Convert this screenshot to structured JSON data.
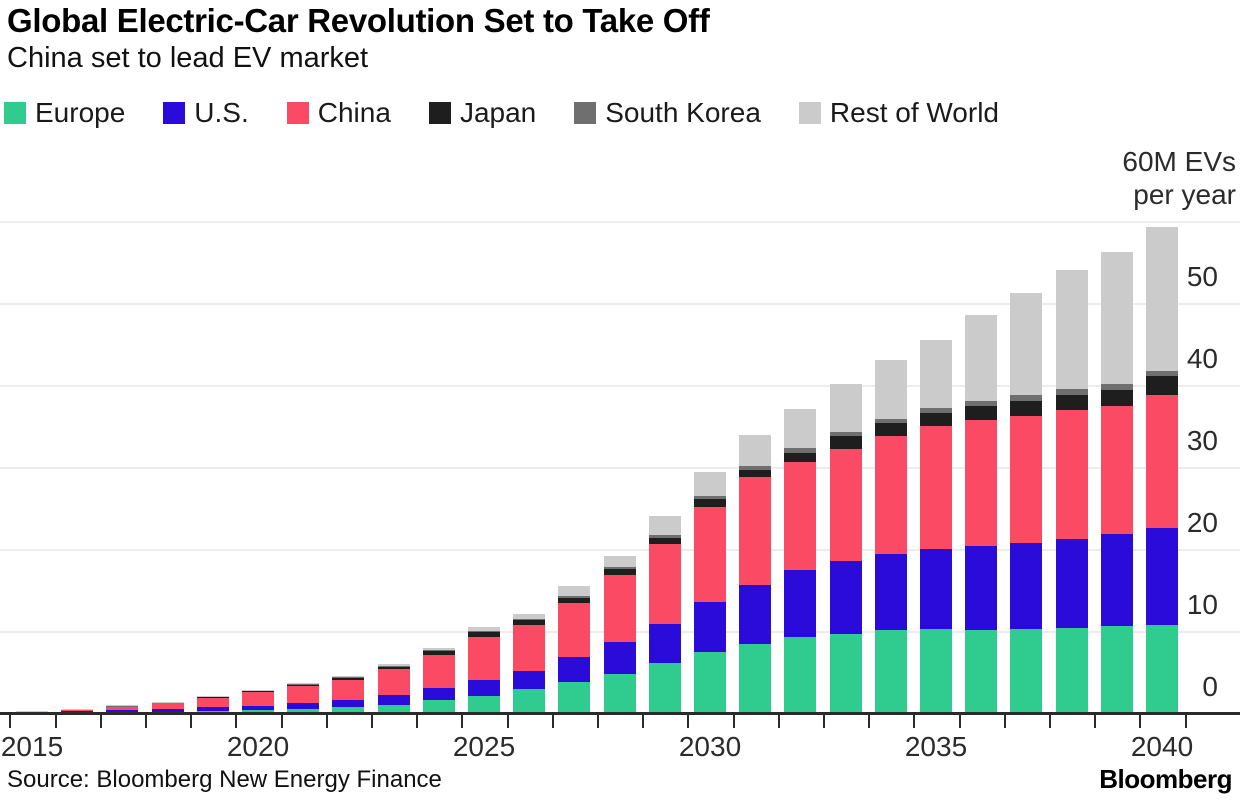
{
  "header": {
    "title": "Global Electric-Car Revolution Set to Take Off",
    "subtitle": "China set to lead EV market"
  },
  "legend": [
    {
      "label": "Europe",
      "color": "#2FCB8F"
    },
    {
      "label": "U.S.",
      "color": "#2B0BD9"
    },
    {
      "label": "China",
      "color": "#FB4A64"
    },
    {
      "label": "Japan",
      "color": "#1E1E1E"
    },
    {
      "label": "South Korea",
      "color": "#6F6F6F"
    },
    {
      "label": "Rest of World",
      "color": "#CBCBCB"
    }
  ],
  "axis_note": {
    "line1": "60M EVs",
    "line2": "per year"
  },
  "source": {
    "label": "Source: Bloomberg New Energy Finance"
  },
  "branding": {
    "logo": "Bloomberg"
  },
  "colors": {
    "grid": "#ececec",
    "axis": "#2b2b2b",
    "title_text": "#000000",
    "label_text": "#2b2b2b"
  },
  "chart_data": {
    "type": "bar",
    "stacked": true,
    "title": "Global Electric-Car Revolution Set to Take Off",
    "subtitle": "China set to lead EV market",
    "xlabel": "",
    "ylabel": "M EVs per year",
    "ylim": [
      0,
      60
    ],
    "y_ticks": [
      0,
      10,
      20,
      30,
      40,
      50
    ],
    "y_grid_values": [
      10,
      20,
      30,
      40,
      50,
      60
    ],
    "grid": "horizontal",
    "legend_position": "top",
    "axis_labels_side": "right",
    "categories": [
      2015,
      2016,
      2017,
      2018,
      2019,
      2020,
      2021,
      2022,
      2023,
      2024,
      2025,
      2026,
      2027,
      2028,
      2029,
      2030,
      2031,
      2032,
      2033,
      2034,
      2035,
      2036,
      2037,
      2038,
      2039,
      2040
    ],
    "x_tick_labels": [
      "2015",
      "2020",
      "2025",
      "2030",
      "2035",
      "2040"
    ],
    "series": [
      {
        "name": "Europe",
        "color": "#2FCB8F",
        "values": [
          0.1,
          0.15,
          0.25,
          0.3,
          0.4,
          0.5,
          0.6,
          0.8,
          1.1,
          1.65,
          2.2,
          3.0,
          3.9,
          4.9,
          6.2,
          7.6,
          8.5,
          9.4,
          9.8,
          10.2,
          10.4,
          10.3,
          10.4,
          10.5,
          10.7,
          10.9
        ]
      },
      {
        "name": "U.S.",
        "color": "#2B0BD9",
        "values": [
          0.15,
          0.2,
          0.25,
          0.3,
          0.4,
          0.5,
          0.7,
          0.85,
          1.2,
          1.5,
          2.0,
          2.3,
          3.0,
          3.9,
          4.8,
          6.0,
          7.2,
          8.2,
          8.9,
          9.3,
          9.7,
          10.2,
          10.4,
          10.8,
          11.2,
          11.8
        ]
      },
      {
        "name": "China",
        "color": "#FB4A64",
        "values": [
          0.1,
          0.2,
          0.4,
          0.7,
          1.2,
          1.65,
          2.1,
          2.55,
          3.2,
          4.1,
          5.2,
          5.5,
          6.6,
          8.1,
          9.7,
          11.7,
          13.2,
          13.1,
          13.6,
          14.4,
          15.0,
          15.4,
          15.6,
          15.8,
          15.7,
          16.2
        ]
      },
      {
        "name": "Japan",
        "color": "#1E1E1E",
        "values": [
          0.02,
          0.05,
          0.12,
          0.15,
          0.18,
          0.22,
          0.25,
          0.28,
          0.3,
          0.4,
          0.6,
          0.65,
          0.65,
          0.8,
          0.8,
          0.9,
          0.9,
          1.1,
          1.6,
          1.6,
          1.6,
          1.7,
          1.8,
          1.8,
          1.9,
          2.3
        ]
      },
      {
        "name": "South Korea",
        "color": "#6F6F6F",
        "values": [
          0.01,
          0.01,
          0.01,
          0.02,
          0.02,
          0.02,
          0.03,
          0.05,
          0.08,
          0.1,
          0.15,
          0.15,
          0.2,
          0.25,
          0.35,
          0.4,
          0.5,
          0.6,
          0.5,
          0.5,
          0.6,
          0.6,
          0.7,
          0.7,
          0.7,
          0.6
        ]
      },
      {
        "name": "Rest of World",
        "color": "#CBCBCB",
        "values": [
          0.01,
          0.01,
          0.02,
          0.05,
          0.05,
          0.05,
          0.05,
          0.1,
          0.2,
          0.25,
          0.45,
          0.65,
          1.2,
          1.35,
          2.35,
          2.9,
          3.7,
          4.8,
          5.8,
          7.2,
          8.3,
          10.5,
          12.4,
          14.5,
          16.2,
          17.6
        ]
      }
    ],
    "totals": [
      0.39,
      0.62,
      1.05,
      1.52,
      2.25,
      2.94,
      3.73,
      4.63,
      6.08,
      8.0,
      10.6,
      12.25,
      15.55,
      19.3,
      24.2,
      29.5,
      34.0,
      37.2,
      40.2,
      43.2,
      45.6,
      48.7,
      51.3,
      54.1,
      56.4,
      59.4
    ]
  }
}
